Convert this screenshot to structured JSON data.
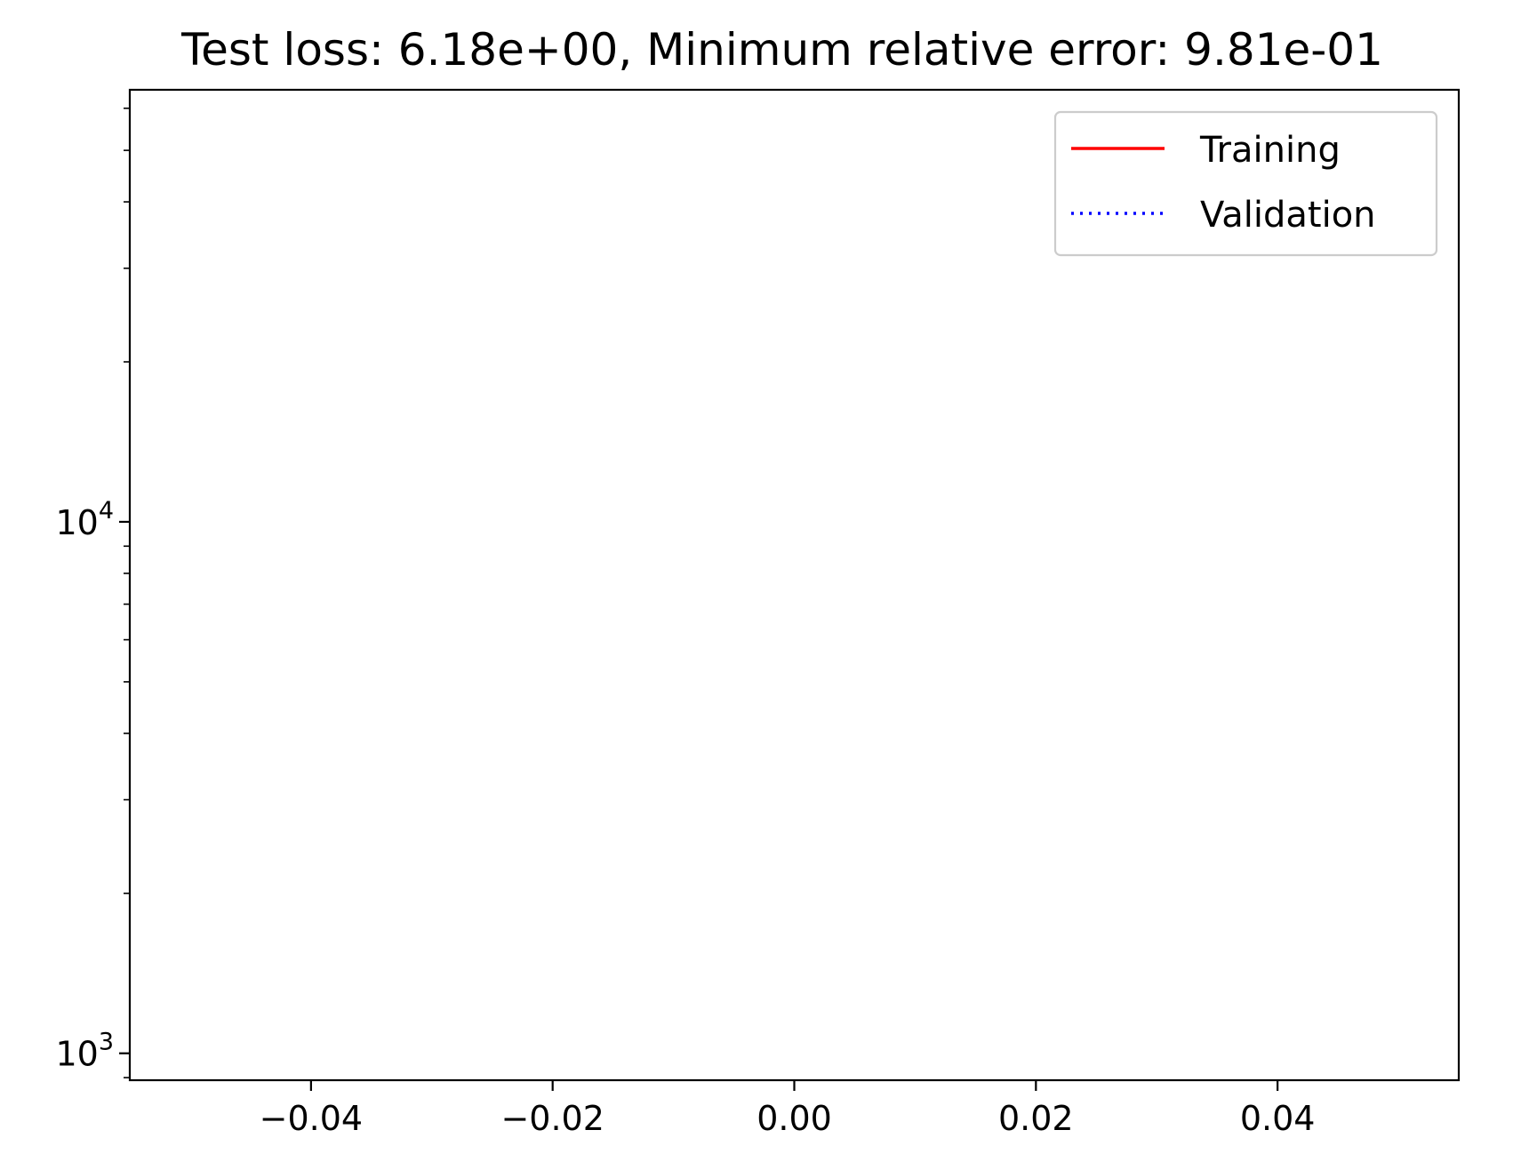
{
  "chart_data": {
    "type": "line",
    "title": "Test loss: 6.18e+00, Minimum relative error: 9.81e-01",
    "xlabel": "",
    "ylabel": "",
    "xlim": [
      -0.055,
      0.055
    ],
    "ylim": [
      890,
      65000
    ],
    "yscale": "log",
    "x_ticks": [
      {
        "value": -0.04,
        "label": "−0.04"
      },
      {
        "value": -0.02,
        "label": "−0.02"
      },
      {
        "value": 0.0,
        "label": "0.00"
      },
      {
        "value": 0.02,
        "label": "0.02"
      },
      {
        "value": 0.04,
        "label": "0.04"
      }
    ],
    "y_ticks": [
      {
        "value": 1000,
        "base": "10",
        "exp": "3"
      },
      {
        "value": 10000,
        "base": "10",
        "exp": "4"
      }
    ],
    "grid": false,
    "legend_position": "top-right",
    "series": [
      {
        "name": "Training",
        "color": "#ff0000",
        "linestyle": "solid",
        "x": [],
        "y": []
      },
      {
        "name": "Validation",
        "color": "#0000ff",
        "linestyle": "dotted",
        "x": [],
        "y": []
      }
    ]
  }
}
